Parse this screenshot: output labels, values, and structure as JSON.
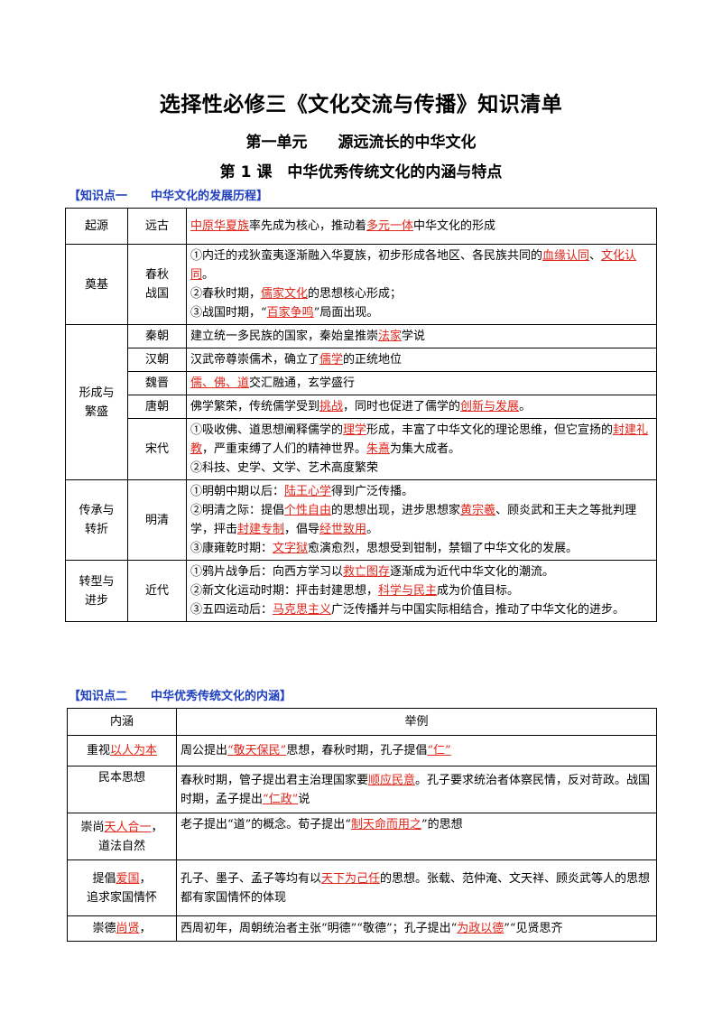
{
  "doc": {
    "title": "选择性必修三《文化交流与传播》知识清单",
    "unit": "第一单元　　源远流长的中华文化",
    "lesson": "第 1 课　中华优秀传统文化的内涵与特点"
  },
  "kp1": {
    "heading": "【知识点一　　中华文化的发展历程】",
    "rows": {
      "r1": {
        "era": "起源",
        "period": "远古",
        "k1": "中原华夏族",
        "t1": "率先成为核心，推动着",
        "k2": "多元一体",
        "t2": "中华文化的形成"
      },
      "r2": {
        "era": "奠基",
        "period": "春秋战国",
        "a1": "①内迁的戎狄蛮夷逐渐融入华夏族，初步形成各地区、各民族共同的",
        "ak1": "血缘认同",
        "a2": "、",
        "ak2": "文化认同",
        "a3": "。",
        "b1": "②春秋时期，",
        "bk1": "儒家文化",
        "b2": "的思想核心形成；",
        "c1": "③战国时期，“",
        "ck1": "百家争鸣",
        "c2": "”局面出现。"
      },
      "r3": {
        "era": "形成与繁盛",
        "period": "秦朝",
        "t1": "建立统一多民族的国家，秦始皇推崇",
        "k1": "法家",
        "t2": "学说"
      },
      "r4": {
        "period": "汉朝",
        "t1": "汉武帝尊崇儒术，确立了",
        "k1": "儒学",
        "t2": "的正统地位"
      },
      "r5": {
        "period": "魏晋",
        "k1": "儒、佛、道",
        "t1": "交汇融通，玄学盛行"
      },
      "r6": {
        "period": "唐朝",
        "t1": "佛学繁荣，传统儒学受到",
        "k1": "挑战",
        "t2": "，同时也促进了儒学的",
        "k2": "创新与发展",
        "t3": "。"
      },
      "r7": {
        "period": "宋代",
        "a1": "①吸收佛、道思想阐释儒学的",
        "ak1": "理学",
        "a2": "形成，丰富了中华文化的理论思维，但它宣扬的",
        "ak2": "封建礼教",
        "a3": "，严重束缚了人们的精神世界。",
        "ak3": "朱熹",
        "a4": "为集大成者。",
        "b1": "②科技、史学、文学、艺术高度繁荣"
      },
      "r8": {
        "era": "传承与转折",
        "period": "明清",
        "a1": "①明朝中期以后：",
        "ak1": "陆王心学",
        "a2": "得到广泛传播。",
        "b1": "②明清之际：提倡",
        "bk1": "个性自由",
        "b2": "的思想出现，进步思想家",
        "bk2": "黄宗羲",
        "b3": "、顾炎武和王夫之等批判理学，抨击",
        "bk3": "封建专制",
        "b4": "，倡导",
        "bk4": "经世致用",
        "b5": "。",
        "c1": "③康雍乾时期：",
        "ck1": "文字狱",
        "c2": "愈演愈烈，思想受到钳制，禁锢了中华文化的发展。"
      },
      "r9": {
        "era": "转型与进步",
        "period": "近代",
        "a1": "①鸦片战争后：向西方学习以",
        "ak1": "救亡图存",
        "a2": "逐渐成为近代中华文化的潮流。",
        "b1": "②新文化运动时期：抨击封建思想，",
        "bk1": "科学与民主",
        "b2": "成为价值目标。",
        "c1": "③五四运动后：",
        "ck1": "马克思主义",
        "c2": "广泛传播并与中国实际相结合，推动了中华文化的进步。"
      }
    }
  },
  "kp2": {
    "heading": "【知识点二　　中华优秀传统文化的内涵】",
    "header": {
      "c1": "内涵",
      "c2": "举例"
    },
    "rows": {
      "r1": {
        "c1a": "重视",
        "c1k": "以人为本",
        "t1": "周公提出",
        "k1": "“敬天保民”",
        "t2": "思想，春秋时期，孔子提倡",
        "k2": "“仁”"
      },
      "r2": {
        "c1": "民本思想",
        "t1": "春秋时期，管子提出君主治理国家要",
        "k1": "顺应民意",
        "t2": "。孔子要求统治者体察民情，反对苛政。战国时期，孟子提出",
        "k2": "“仁政”",
        "t3": "说"
      },
      "r3": {
        "c1a": "崇尚",
        "c1k": "天人合一",
        "c1b": "，",
        "c1c": "道法自然",
        "t1": "老子提出“道”的概念。荀子提出“",
        "k1": "制天命而用之",
        "t2": "”的思想"
      },
      "r4": {
        "c1a": "提倡",
        "c1k": "爱国",
        "c1b": "，",
        "c1c": "追求家国情怀",
        "t1": "孔子、墨子、孟子等均有以",
        "k1": "天下为己任",
        "t2": "的思想。张载、范仲淹、文天祥、顾炎武等人的思想都有家国情怀的体现"
      },
      "r5": {
        "c1a": "崇德",
        "c1k": "尚贤",
        "c1b": "，",
        "t1": "西周初年，周朝统治者主张“明德”“敬德”；孔子提出“",
        "k1": "为政以德",
        "t2": "”“见贤思齐"
      }
    }
  },
  "colors": {
    "keyword": "#e0261b",
    "heading": "#1f3fbf"
  }
}
